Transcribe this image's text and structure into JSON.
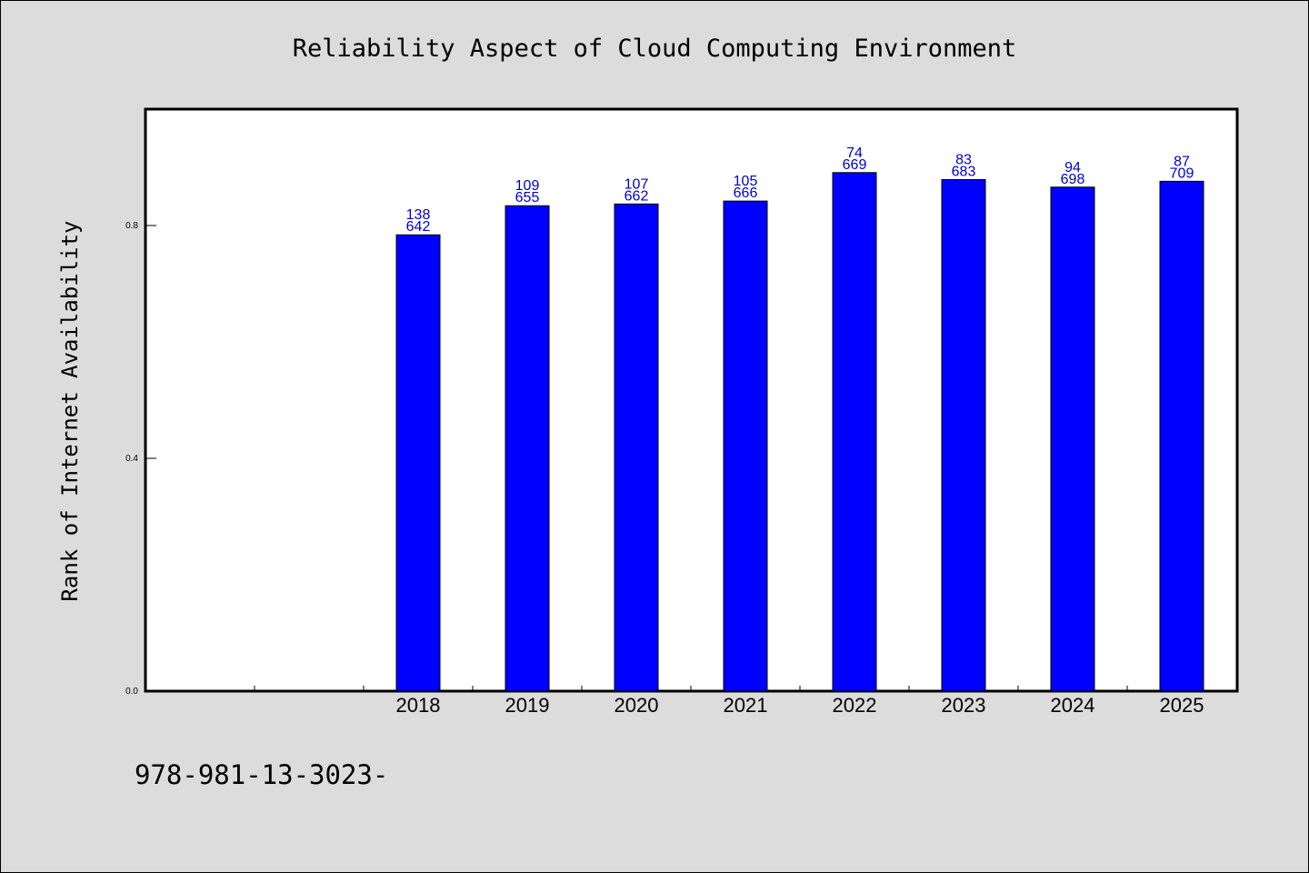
{
  "chart_data": {
    "type": "bar",
    "title": "Reliability Aspect of Cloud Computing Environment",
    "xlabel": "",
    "ylabel": "Rank of Internet Availability",
    "ylim": [
      0,
      1.0
    ],
    "yticks": [
      "0.0",
      "0.4",
      "0.8"
    ],
    "ytick_values": [
      0.0,
      0.4,
      0.8
    ],
    "category_slots": 10,
    "categories": [
      "2018",
      "2019",
      "2020",
      "2021",
      "2022",
      "2023",
      "2024",
      "2025"
    ],
    "values": [
      0.784,
      0.834,
      0.837,
      0.842,
      0.891,
      0.879,
      0.866,
      0.876
    ],
    "data_labels": [
      [
        "138",
        "642"
      ],
      [
        "109",
        "655"
      ],
      [
        "107",
        "662"
      ],
      [
        "105",
        "666"
      ],
      [
        "74",
        "669"
      ],
      [
        "83",
        "683"
      ],
      [
        "94",
        "698"
      ],
      [
        "87",
        "709"
      ]
    ],
    "bar_color": "#0000ff",
    "label_color": "#0000cc",
    "grid": false,
    "legend": "none"
  },
  "footer": {
    "text": "978-981-13-3023-"
  },
  "colors": {
    "background": "#dcdcdc",
    "plot_background": "#ffffff"
  }
}
